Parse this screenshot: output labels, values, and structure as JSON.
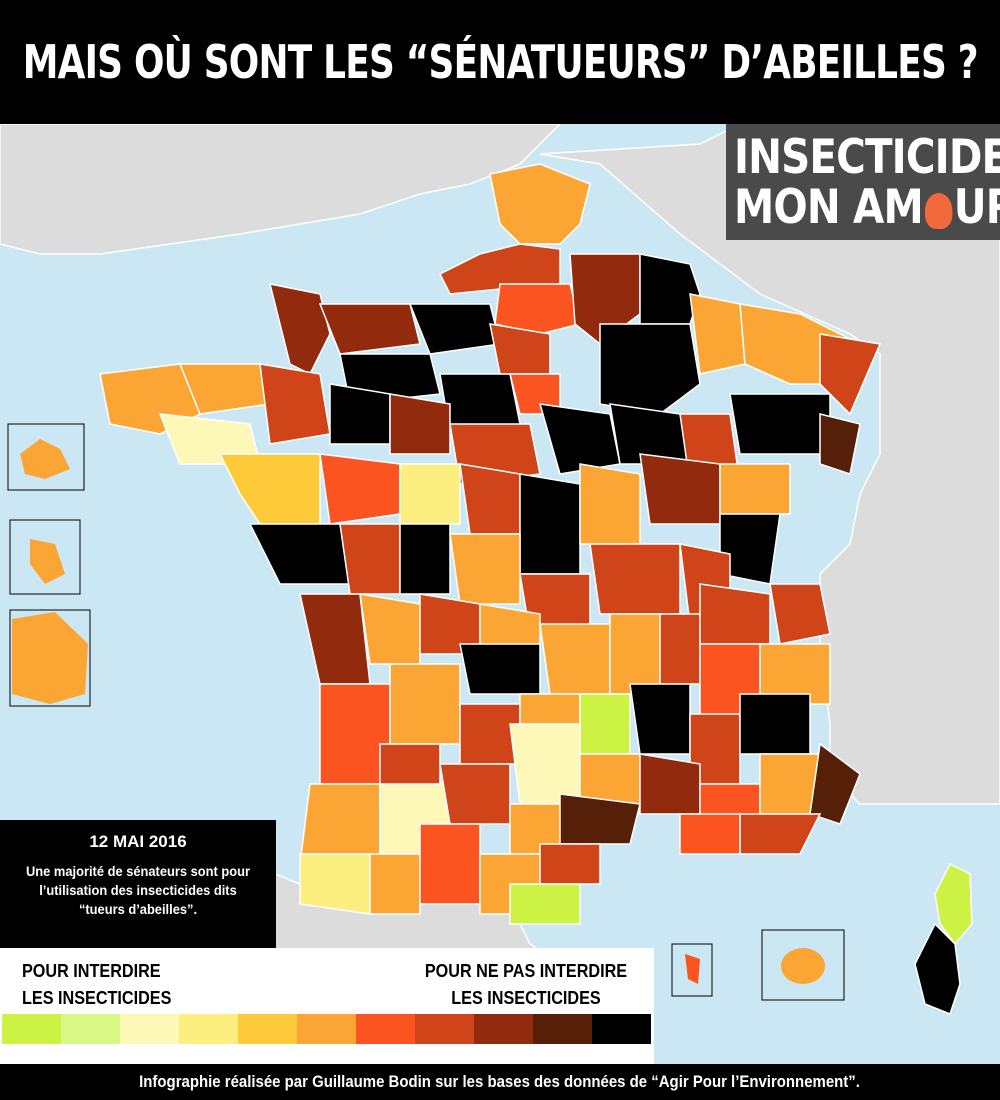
{
  "title": "MAIS OÙ SONT LES “SÉNATUEURS” D’ABEILLES ?",
  "logo": {
    "line1": "INSECTICIDE",
    "line2_a": "MON AM",
    "line2_b": "UR",
    "skull_icon": "skull-icon"
  },
  "note": {
    "date": "12 MAI 2016",
    "text": "Une majorité de sénateurs sont pour l’utilisation des insecticides dits “tueurs d’abeilles”."
  },
  "legend": {
    "left_label_1": "POUR INTERDIRE",
    "left_label_2": "LES INSECTICIDES",
    "right_label_1": "POUR NE PAS INTERDIRE",
    "right_label_2": "LES INSECTICIDES",
    "scale_colors": [
      "#ccf244",
      "#d9f784",
      "#fef8b8",
      "#fdee80",
      "#fdcb3a",
      "#fba634",
      "#fb5421",
      "#cf4418",
      "#922a0d",
      "#562008",
      "#000000"
    ]
  },
  "colors": {
    "sea": "#cbe7f3",
    "land_other": "#dcdcdc",
    "border": "#ffffff"
  },
  "credit": "Infographie réalisée par Guillaume Bodin sur les bases des données de “Agir Pour l’Environnement”."
}
